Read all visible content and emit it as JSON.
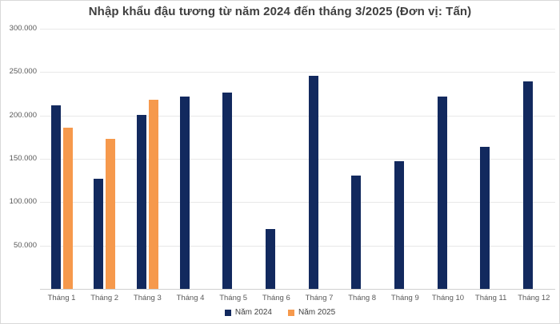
{
  "chart_data": {
    "type": "bar",
    "title": "Nhập khẩu đậu tương từ năm 2024 đến tháng 3/2025 (Đơn vị: Tấn)",
    "categories": [
      "Tháng 1",
      "Tháng 2",
      "Tháng 3",
      "Tháng 4",
      "Tháng 5",
      "Tháng 6",
      "Tháng 7",
      "Tháng 8",
      "Tháng 9",
      "Tháng 10",
      "Tháng 11",
      "Tháng 12"
    ],
    "series": [
      {
        "name": "Năm 2024",
        "color": "#12295E",
        "values": [
          212000,
          127000,
          201000,
          222000,
          226000,
          69000,
          246000,
          131000,
          147000,
          222000,
          164000,
          239000
        ]
      },
      {
        "name": "Năm 2025",
        "color": "#F6994C",
        "values": [
          186000,
          173000,
          218000,
          null,
          null,
          null,
          null,
          null,
          null,
          null,
          null,
          null
        ]
      }
    ],
    "ylim": [
      0,
      300000
    ],
    "y_tick_interval": 50000,
    "y_tick_labels": [
      "50.000",
      "100.000",
      "150.000",
      "200.000",
      "250.000",
      "300.000"
    ],
    "xlabel": "",
    "ylabel": "",
    "grid": true,
    "legend_position": "bottom",
    "colors": {
      "grid": "#e8e8e8",
      "axis": "#d0d0d0",
      "tick_text": "#595959",
      "title_text": "#3f3f3f",
      "legend_text": "#404040",
      "background": "#ffffff"
    }
  }
}
